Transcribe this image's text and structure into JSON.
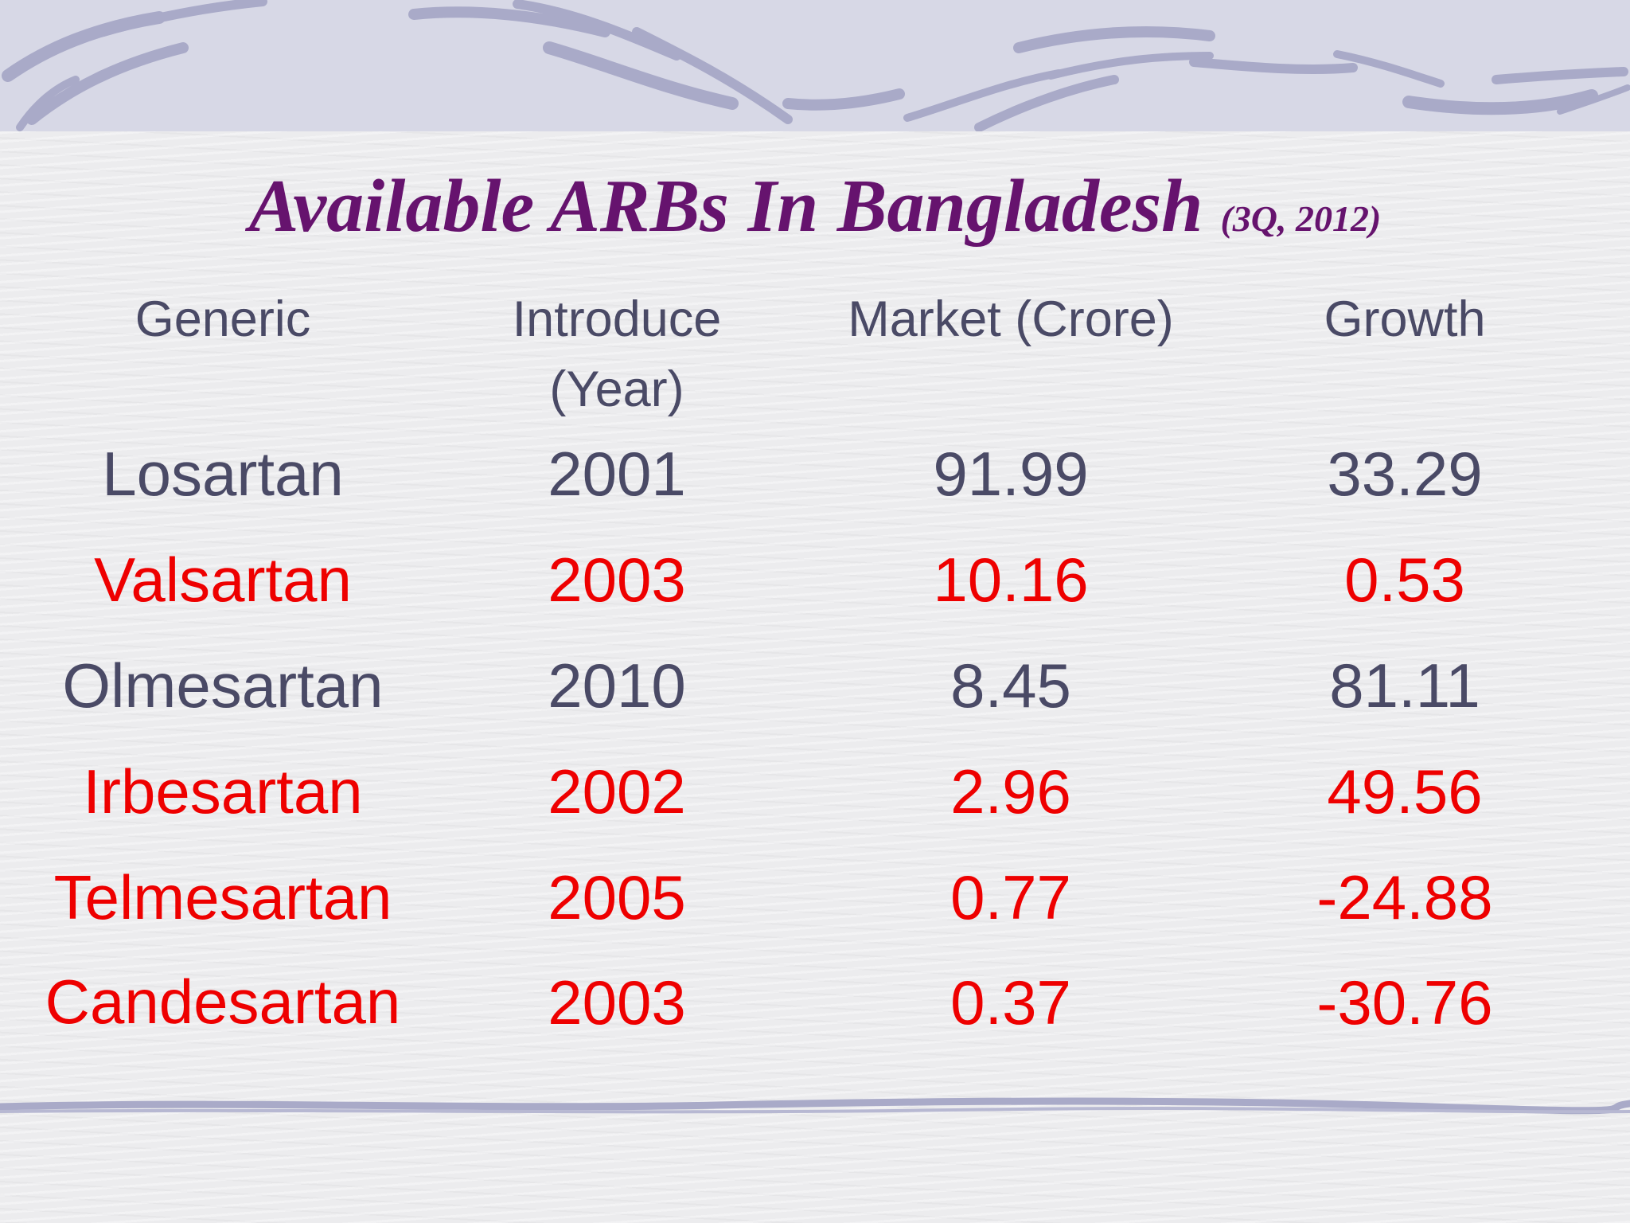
{
  "slide": {
    "title": "Available ARBs In Bangladesh",
    "subtitle": "(3Q, 2012)"
  },
  "table": {
    "headers": [
      "Generic",
      "Introduce (Year)",
      "Market (Crore)",
      "Growth"
    ],
    "rows": [
      {
        "generic": "Losartan",
        "year": "2001",
        "market": "91.99",
        "growth": "33.29",
        "color": "#4a4a66"
      },
      {
        "generic": "Valsartan",
        "year": "2003",
        "market": "10.16",
        "growth": "0.53",
        "color": "#ee0000"
      },
      {
        "generic": "Olmesartan",
        "year": "2010",
        "market": "8.45",
        "growth": "81.11",
        "color": "#4a4a66"
      },
      {
        "generic": "Irbesartan",
        "year": "2002",
        "market": "2.96",
        "growth": "49.56",
        "color": "#ee0000"
      },
      {
        "generic": "Telmesartan",
        "year": "2005",
        "market": "0.77",
        "growth": "-24.88",
        "color": "#ee0000"
      },
      {
        "generic": "Candesartan",
        "year": "2003",
        "market": "0.37",
        "growth": "-30.76",
        "color": "#ee0000"
      }
    ]
  },
  "colors": {
    "title": "#66136e",
    "header_text": "#4a4a66",
    "highlight_text": "#ee0000",
    "decoration": "#a9aac8"
  }
}
